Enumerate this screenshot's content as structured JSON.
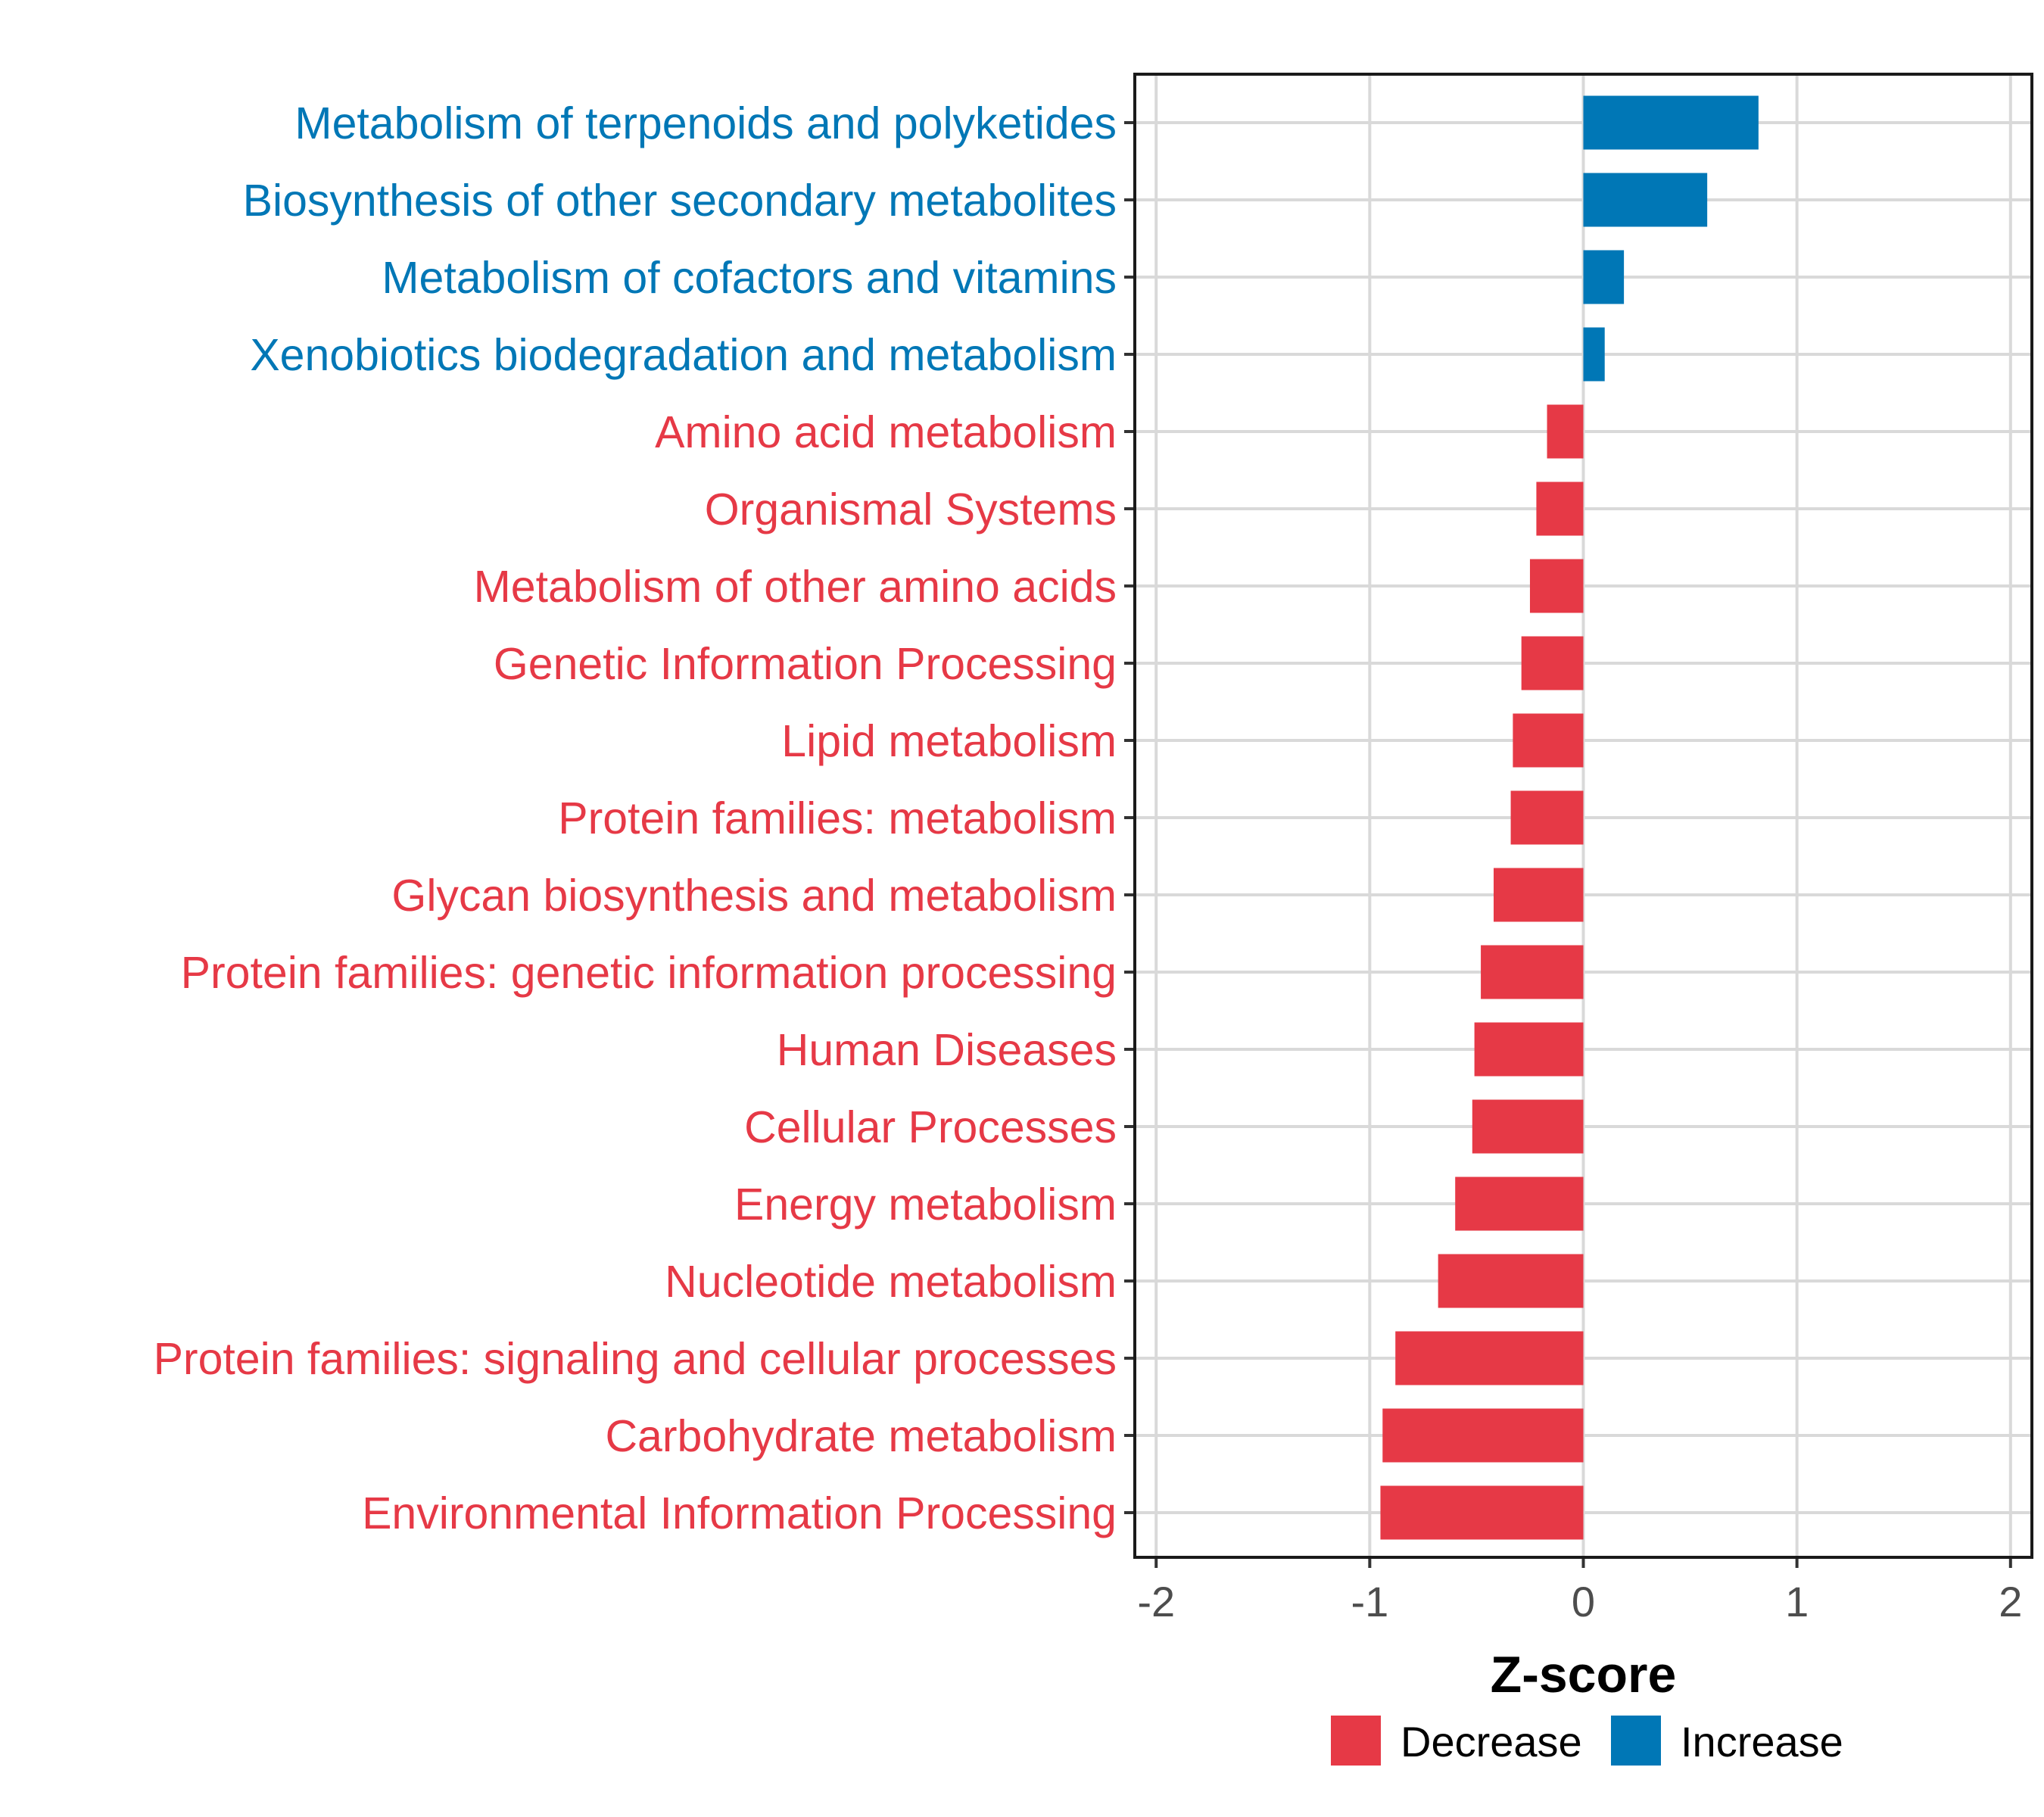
{
  "chart_data": {
    "type": "bar",
    "orientation": "horizontal",
    "title": "",
    "xlabel": "Z-score",
    "ylabel": "",
    "xlim": [
      -2.1,
      2.1
    ],
    "xticks": [
      -2,
      -1,
      0,
      1,
      2
    ],
    "xtick_labels": [
      "-2",
      "-1",
      "0",
      "1",
      "2"
    ],
    "grid": true,
    "legend_position": "bottom",
    "categories": [
      "Metabolism of terpenoids and polyketides",
      "Biosynthesis of other secondary metabolites",
      "Metabolism of cofactors and vitamins",
      "Xenobiotics biodegradation and metabolism",
      "Amino acid metabolism",
      "Organismal Systems",
      "Metabolism of other amino acids",
      "Genetic Information Processing",
      "Lipid metabolism",
      "Protein families: metabolism",
      "Glycan biosynthesis and metabolism",
      "Protein families: genetic information processing",
      "Human Diseases",
      "Cellular Processes",
      "Energy metabolism",
      "Nucleotide metabolism",
      "Protein families: signaling and cellular processes",
      "Carbohydrate metabolism",
      "Environmental Information Processing"
    ],
    "values": [
      0.82,
      0.58,
      0.19,
      0.1,
      -0.17,
      -0.22,
      -0.25,
      -0.29,
      -0.33,
      -0.34,
      -0.42,
      -0.48,
      -0.51,
      -0.52,
      -0.6,
      -0.68,
      -0.88,
      -0.94,
      -0.95
    ],
    "groups": [
      "Increase",
      "Increase",
      "Increase",
      "Increase",
      "Decrease",
      "Decrease",
      "Decrease",
      "Decrease",
      "Decrease",
      "Decrease",
      "Decrease",
      "Decrease",
      "Decrease",
      "Decrease",
      "Decrease",
      "Decrease",
      "Decrease",
      "Decrease",
      "Decrease"
    ],
    "legend": [
      {
        "name": "Decrease",
        "color": "#e63946"
      },
      {
        "name": "Increase",
        "color": "#0077b6"
      }
    ]
  },
  "colors": {
    "decrease": "#e63946",
    "increase": "#0077b6",
    "grid": "#d9d9d9",
    "tick_text": "#4d4d4d"
  }
}
